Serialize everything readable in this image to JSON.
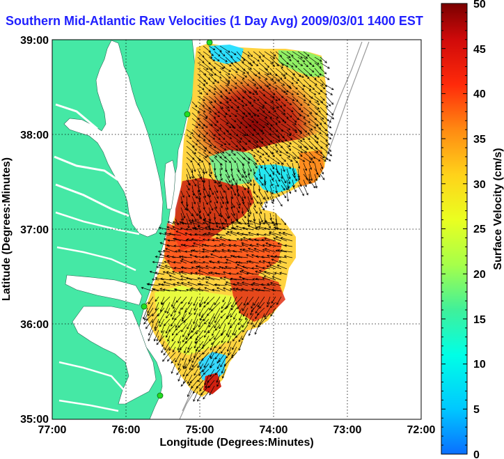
{
  "title": "Southern Mid-Atlantic Raw Velocities (1 Day Avg) 2009/03/01 1400 EST",
  "xaxis": {
    "label": "Longitude (Degrees:Minutes)",
    "ticks": [
      "77:00",
      "76:00",
      "75:00",
      "74:00",
      "73:00",
      "72:00"
    ]
  },
  "yaxis": {
    "label": "Latitude (Degrees:Minutes)",
    "ticks": [
      "39:00",
      "38:00",
      "37:00",
      "36:00",
      "35:00"
    ]
  },
  "colorbar": {
    "label": "Surface Velocity (cm/s)",
    "ticks": [
      "50",
      "45",
      "40",
      "35",
      "30",
      "25",
      "20",
      "15",
      "10",
      "5",
      "0"
    ],
    "range": [
      0,
      50
    ]
  },
  "colors": {
    "land": "#45e8a5",
    "water": "#ffffff",
    "title": "#1f1fff",
    "station": "#22dd22"
  }
}
